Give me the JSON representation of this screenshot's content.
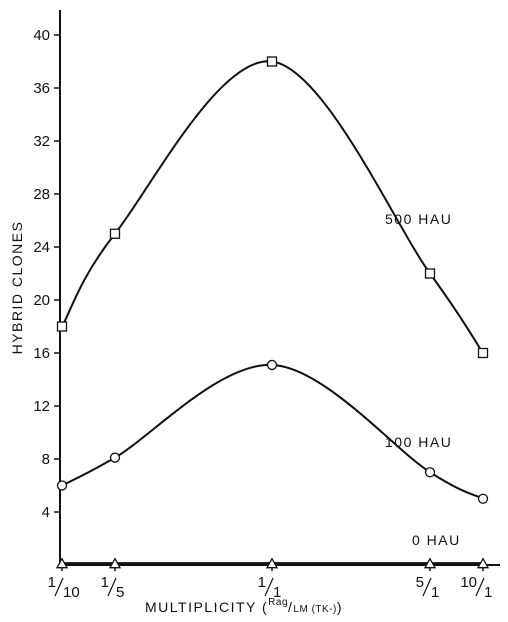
{
  "chart_data": {
    "type": "line",
    "ylabel": "HYBRID CLONES",
    "xlabel": {
      "prefix": "MULTIPLICITY (",
      "ratio_top": "Rag",
      "ratio_bottom": "LM (TK-)",
      "suffix": ")"
    },
    "categories": [
      "1/10",
      "1/5",
      "1/1",
      "5/1",
      "10/1"
    ],
    "x_ticks": [
      {
        "num": "1",
        "den": "10"
      },
      {
        "num": "1",
        "den": "5"
      },
      {
        "num": "1",
        "den": "1"
      },
      {
        "num": "5",
        "den": "1"
      },
      {
        "num": "10",
        "den": "1"
      }
    ],
    "y_ticks": [
      4,
      8,
      12,
      16,
      20,
      24,
      28,
      32,
      36,
      40
    ],
    "ylim": [
      0,
      42
    ],
    "grid": false,
    "series": [
      {
        "name": "500 HAU",
        "marker": "square",
        "values": [
          18,
          25,
          38,
          22,
          16
        ]
      },
      {
        "name": "100 HAU",
        "marker": "circle",
        "values": [
          6,
          8.1,
          15.1,
          7,
          5
        ]
      },
      {
        "name": "0 HAU",
        "marker": "triangle",
        "values": [
          0.1,
          0.1,
          0.1,
          0.1,
          0.1
        ]
      }
    ]
  }
}
